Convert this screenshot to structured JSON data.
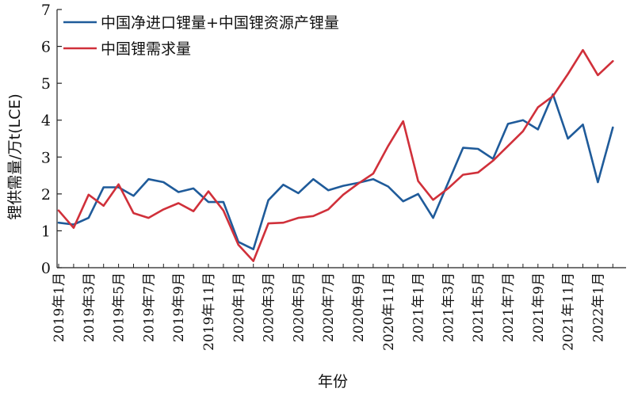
{
  "chart_data": {
    "type": "line",
    "xlabel": "年份",
    "ylabel": "锂供需量/万t(LCE)",
    "ylim": [
      0,
      7
    ],
    "yticks": [
      "0",
      "1",
      "2",
      "3",
      "4",
      "5",
      "6",
      "7"
    ],
    "grid": false,
    "legend_position": "top-left",
    "x": [
      "2019年1月",
      "2019年2月",
      "2019年3月",
      "2019年4月",
      "2019年5月",
      "2019年6月",
      "2019年7月",
      "2019年8月",
      "2019年9月",
      "2019年10月",
      "2019年11月",
      "2019年12月",
      "2020年1月",
      "2020年2月",
      "2020年3月",
      "2020年4月",
      "2020年5月",
      "2020年6月",
      "2020年7月",
      "2020年8月",
      "2020年9月",
      "2020年10月",
      "2020年11月",
      "2020年12月",
      "2021年1月",
      "2021年2月",
      "2021年3月",
      "2021年4月",
      "2021年5月",
      "2021年6月",
      "2021年7月",
      "2021年8月",
      "2021年9月",
      "2021年10月",
      "2021年11月",
      "2021年12月",
      "2022年1月",
      "2022年2月"
    ],
    "xtick_labels": [
      "2019年1月",
      "2019年3月",
      "2019年5月",
      "2019年7月",
      "2019年9月",
      "2019年11月",
      "2020年1月",
      "2020年3月",
      "2020年5月",
      "2020年7月",
      "2020年9月",
      "2020年11月",
      "2021年1月",
      "2021年3月",
      "2021年5月",
      "2021年7月",
      "2021年9月",
      "2021年11月",
      "2022年1月"
    ],
    "series": [
      {
        "name": "中国净进口锂量+中国锂资源产锂量",
        "color": "#1f5b9a",
        "values": [
          1.22,
          1.17,
          1.35,
          2.18,
          2.18,
          1.95,
          2.4,
          2.32,
          2.05,
          2.15,
          1.78,
          1.78,
          0.7,
          0.5,
          1.83,
          2.25,
          2.02,
          2.4,
          2.1,
          2.22,
          2.3,
          2.4,
          2.2,
          1.8,
          2.0,
          1.35,
          2.3,
          3.25,
          3.22,
          2.95,
          3.9,
          4.0,
          3.75,
          4.7,
          3.5,
          3.88,
          2.32,
          3.8
        ]
      },
      {
        "name": "中国锂需求量",
        "color": "#d0303a",
        "values": [
          1.55,
          1.08,
          1.98,
          1.68,
          2.26,
          1.48,
          1.35,
          1.58,
          1.75,
          1.53,
          2.07,
          1.55,
          0.62,
          0.18,
          1.2,
          1.22,
          1.35,
          1.4,
          1.58,
          1.98,
          2.28,
          2.55,
          3.3,
          3.97,
          2.35,
          1.84,
          2.15,
          2.52,
          2.58,
          2.9,
          3.3,
          3.7,
          4.35,
          4.65,
          5.25,
          5.9,
          5.22,
          5.6
        ]
      }
    ]
  }
}
